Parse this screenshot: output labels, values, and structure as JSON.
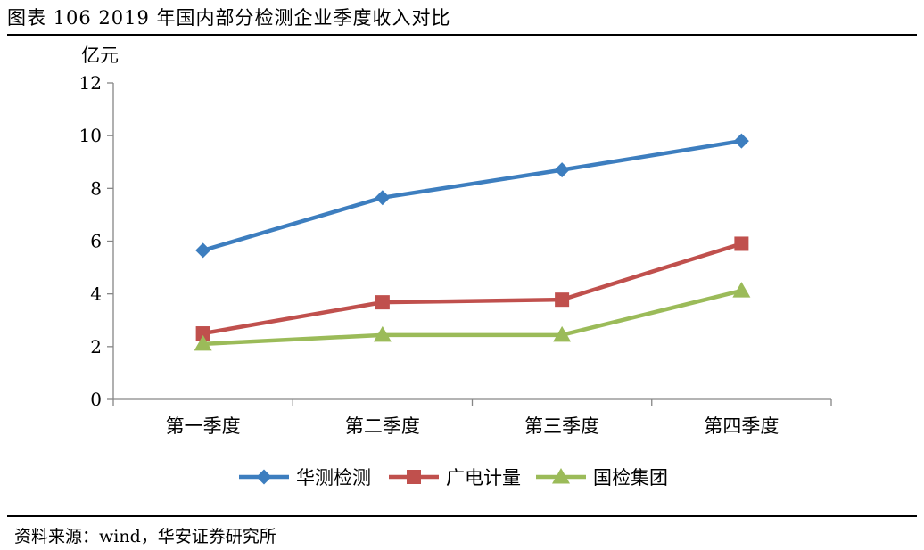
{
  "figure_title": "图表 106 2019 年国内部分检测企业季度收入对比",
  "source_note": "资料来源：wind，华安证券研究所",
  "chart_data": {
    "type": "line",
    "title": "",
    "ylabel": "亿元",
    "xlabel": "",
    "categories": [
      "第一季度",
      "第二季度",
      "第三季度",
      "第四季度"
    ],
    "ylim": [
      0,
      12
    ],
    "yticks": [
      0,
      2,
      4,
      6,
      8,
      10,
      12
    ],
    "grid": false,
    "legend_position": "bottom",
    "series": [
      {
        "name": "华测检测",
        "values": [
          5.65,
          7.65,
          8.7,
          9.8
        ],
        "color": "#3d7ebf",
        "marker": "diamond"
      },
      {
        "name": "广电计量",
        "values": [
          2.5,
          3.68,
          3.78,
          5.9
        ],
        "color": "#c0504d",
        "marker": "square"
      },
      {
        "name": "国检集团",
        "values": [
          2.1,
          2.44,
          2.44,
          4.12
        ],
        "color": "#9bbb59",
        "marker": "triangle"
      }
    ]
  }
}
